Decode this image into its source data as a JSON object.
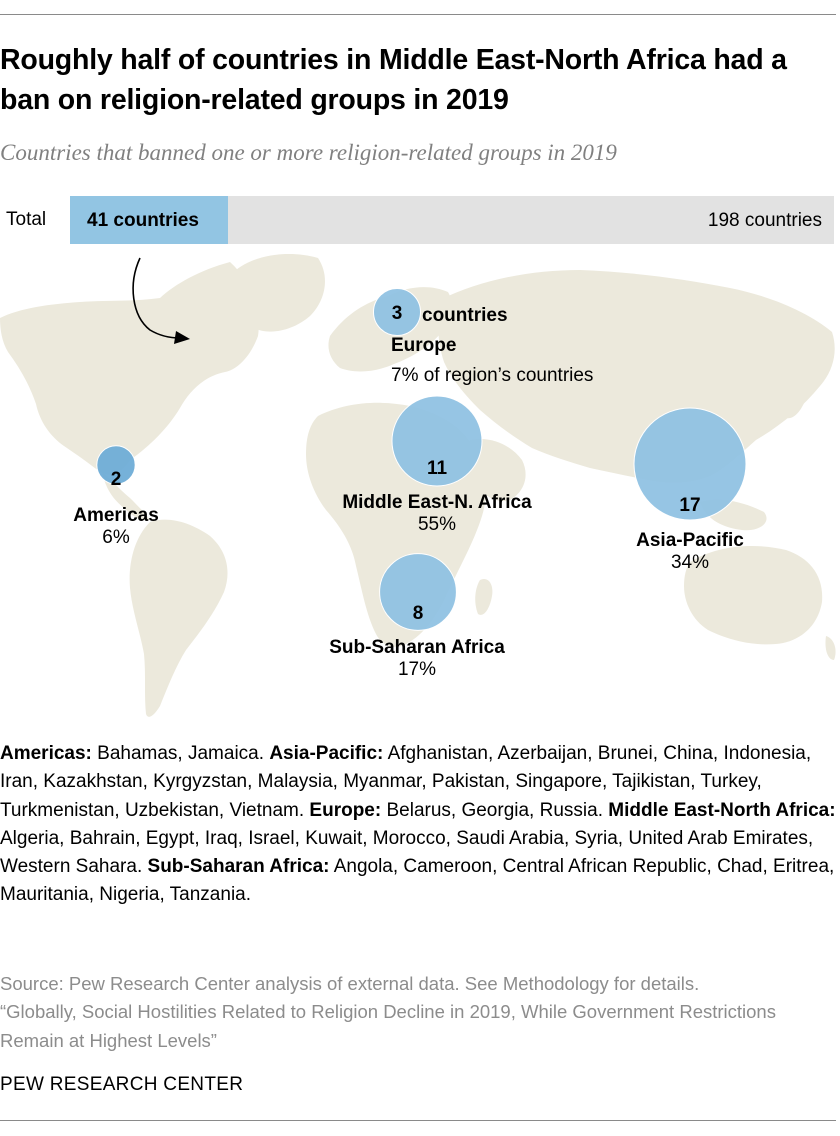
{
  "header": {
    "title": "Roughly half of countries in Middle East-North Africa had a ban on religion-related groups in 2019",
    "subtitle": "Countries that banned one or more religion-related groups in 2019"
  },
  "total_bar": {
    "label": "Total",
    "fill_label": "41 countries",
    "total_label": "198 countries",
    "value": 41,
    "total": 198
  },
  "chart_data": {
    "type": "bubble",
    "title": "Roughly half of countries in Middle East-North Africa had a ban on religion-related groups in 2019",
    "subtitle": "Countries that banned one or more religion-related groups in 2019",
    "total": {
      "value": 41,
      "of": 198,
      "value_label": "41 countries",
      "of_label": "198 countries"
    },
    "series": [
      {
        "region": "Europe",
        "count": 3,
        "count_label": "3",
        "suffix": "countries",
        "share_label": "7% of region’s countries"
      },
      {
        "region": "Americas",
        "count": 2,
        "count_label": "2",
        "share_label": "6%"
      },
      {
        "region": "Middle East-N. Africa",
        "count": 11,
        "count_label": "11",
        "share_label": "55%"
      },
      {
        "region": "Asia-Pacific",
        "count": 17,
        "count_label": "17",
        "share_label": "34%"
      },
      {
        "region": "Sub-Saharan Africa",
        "count": 8,
        "count_label": "8",
        "share_label": "17%"
      }
    ]
  },
  "colors": {
    "bar_fill": "#92c5e3",
    "bar_track": "#e2e2e2",
    "bubble": "#8dc0e2",
    "bubble_dark": "#6aaad6",
    "bubble_stroke": "#ffffff",
    "land": "#ece9dc",
    "arrow": "#000000"
  },
  "legend": {
    "americas_label": "Americas:",
    "americas_text": " Bahamas, Jamaica. ",
    "asia_label": "Asia-Pacific:",
    "asia_text": " Afghanistan, Azerbaijan, Brunei, China, Indonesia, Iran, Kazakhstan, Kyrgyzstan, Malaysia, Myanmar, Pakistan, Singapore, Tajikistan, Turkey, Turkmenistan, Uzbekistan, Vietnam. ",
    "europe_label": "Europe:",
    "europe_text": " Belarus, Georgia, Russia. ",
    "mena_label": "Middle East-North Africa:",
    "mena_text": " Algeria, Bahrain, Egypt, Iraq, Israel, Kuwait, Morocco, Saudi Arabia, Syria, United Arab Emirates, Western Sahara. ",
    "ssa_label": "Sub-Saharan Africa:",
    "ssa_text": " Angola, Cameroon, Central African Republic, Chad, Eritrea, Mauritania, Nigeria, Tanzania."
  },
  "footer": {
    "source": "Source: Pew Research Center analysis of external data. See Methodology for details.",
    "report": "“Globally, Social Hostilities Related to Religion Decline in 2019, While Government Restrictions Remain at Highest Levels”",
    "org": "PEW RESEARCH CENTER"
  }
}
